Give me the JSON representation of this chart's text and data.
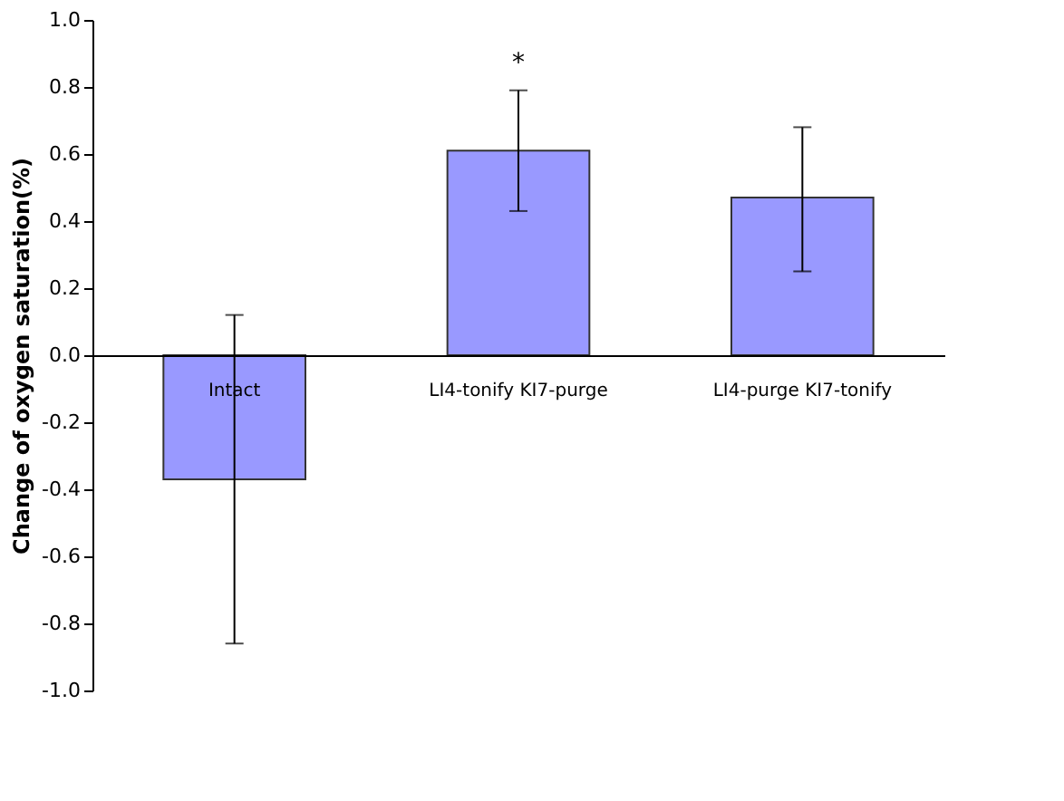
{
  "chart_data": {
    "type": "bar",
    "ylabel": "Change of oxygen saturation(%)",
    "categories": [
      "Intact",
      "LI4-tonify KI7-purge",
      "LI4-purge KI7-tonify"
    ],
    "values": [
      -0.37,
      0.61,
      0.47
    ],
    "errors": [
      [
        -0.86,
        0.12
      ],
      [
        0.43,
        0.79
      ],
      [
        0.25,
        0.68
      ]
    ],
    "color": "#9999ff",
    "ylim": [
      -1.0,
      1.0
    ],
    "yticks": [
      {
        "value": -1.0,
        "label": "-1.0"
      },
      {
        "value": -0.8,
        "label": "-0.8"
      },
      {
        "value": -0.6,
        "label": "-0.6"
      },
      {
        "value": -0.4,
        "label": "-0.4"
      },
      {
        "value": -0.2,
        "label": "-0.2"
      },
      {
        "value": 0.0,
        "label": "0.0"
      },
      {
        "value": 0.2,
        "label": "0.2"
      },
      {
        "value": 0.4,
        "label": "0.4"
      },
      {
        "value": 0.6,
        "label": "0.6"
      },
      {
        "value": 0.8,
        "label": "0.8"
      },
      {
        "value": 1.0,
        "label": "1.0"
      }
    ],
    "annotations": [
      "*"
    ],
    "grid": false
  }
}
